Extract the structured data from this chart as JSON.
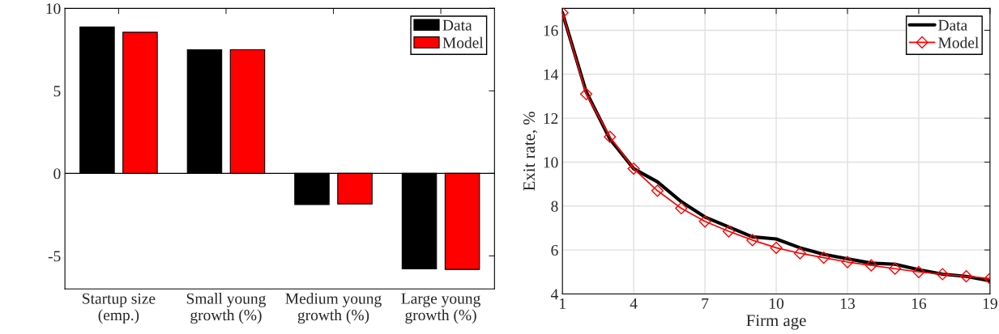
{
  "chart_data": [
    {
      "type": "bar",
      "categories": [
        "Startup size\n(emp.)",
        "Small young\ngrowth (%)",
        "Medium young\ngrowth (%)",
        "Large young\ngrowth (%)"
      ],
      "series": [
        {
          "name": "Data",
          "color": "#000000",
          "values": [
            8.88,
            7.49,
            -1.89,
            -5.78
          ]
        },
        {
          "name": "Model",
          "color": "#ff0000",
          "values": [
            8.55,
            7.49,
            -1.85,
            -5.82
          ]
        }
      ],
      "ylim": [
        -7,
        10
      ],
      "yticks": [
        {
          "value": -5,
          "label": "-5"
        },
        0,
        5,
        10
      ],
      "ref_lines": [
        {
          "axis": "y",
          "value": 0,
          "color": "#000000"
        }
      ],
      "grid": false,
      "legend": "top right"
    },
    {
      "type": "line",
      "x": [
        1,
        2,
        3,
        4,
        5,
        6,
        7,
        8,
        9,
        10,
        11,
        12,
        13,
        14,
        15,
        16,
        17,
        18,
        19
      ],
      "xlabel": "Firm age",
      "ylabel": "Exit rate, %",
      "series": [
        {
          "name": "Data",
          "color": "#000000",
          "marker": "none",
          "values": [
            16.8,
            13.2,
            11.05,
            9.7,
            9.1,
            8.2,
            7.5,
            7.05,
            6.6,
            6.5,
            6.1,
            5.8,
            5.6,
            5.4,
            5.35,
            5.1,
            4.9,
            4.8,
            4.6
          ]
        },
        {
          "name": "Model",
          "color": "#ff0000",
          "marker": "diamond",
          "values": [
            16.8,
            13.1,
            11.15,
            9.7,
            8.7,
            7.9,
            7.3,
            6.85,
            6.45,
            6.1,
            5.85,
            5.65,
            5.45,
            5.3,
            5.15,
            5.0,
            4.9,
            4.8,
            4.7
          ]
        }
      ],
      "xlim": [
        1,
        19
      ],
      "xticks": [
        1,
        4,
        7,
        10,
        13,
        16,
        19
      ],
      "ylim": [
        4,
        17
      ],
      "yticks": [
        4,
        6,
        8,
        10,
        12,
        14,
        16
      ],
      "grid": true,
      "legend": "top right"
    }
  ]
}
